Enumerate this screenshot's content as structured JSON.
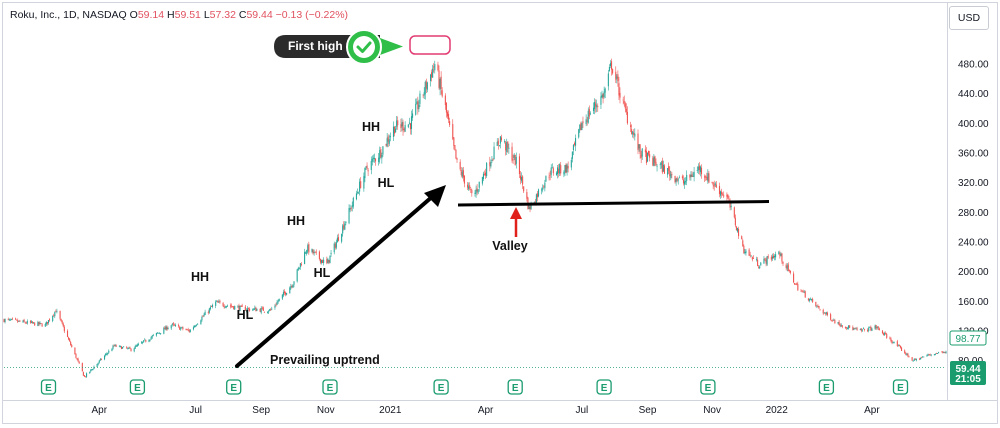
{
  "legend": {
    "symbol": "Roku, Inc., 1D, NASDAQ",
    "open_label": "O",
    "open": "59.14",
    "high_label": "H",
    "high": "59.51",
    "low_label": "L",
    "low": "57.32",
    "close_label": "C",
    "close": "59.44",
    "change": "−0.13 (−0.22%)"
  },
  "currency_button": "USD",
  "colors": {
    "up": "#26a69a",
    "down": "#ef5350",
    "badge_green": "#1a9c6e",
    "check_green": "#2fbf49",
    "highlight_pink": "#e23b71",
    "arrow_red": "#e0211b"
  },
  "icons": {
    "earnings": "E",
    "check": "check-icon"
  },
  "chart_data": {
    "type": "candlestick",
    "title": "",
    "y_axis": {
      "position": "right",
      "ticks": [
        "80.00",
        "120.00",
        "160.00",
        "200.00",
        "240.00",
        "280.00",
        "320.00",
        "360.00",
        "400.00",
        "440.00",
        "480.00"
      ],
      "ylim": [
        60,
        500
      ]
    },
    "x_axis": {
      "ticks": [
        "Apr",
        "Jul",
        "Sep",
        "Nov",
        "2021",
        "Apr",
        "Jul",
        "Sep",
        "Nov",
        "2022",
        "Apr"
      ],
      "range": [
        "2020-01-02",
        "2022-06-10"
      ]
    },
    "price_labels": {
      "current": "98.77",
      "last": "59.44",
      "countdown": "21:05"
    },
    "price_path": [
      [
        "2020-01-02",
        135
      ],
      [
        "2020-02-10",
        128
      ],
      [
        "2020-02-20",
        148
      ],
      [
        "2020-03-18",
        58
      ],
      [
        "2020-04-15",
        100
      ],
      [
        "2020-05-01",
        95
      ],
      [
        "2020-06-08",
        128
      ],
      [
        "2020-06-25",
        120
      ],
      [
        "2020-07-20",
        158
      ],
      [
        "2020-08-15",
        150
      ],
      [
        "2020-09-10",
        148
      ],
      [
        "2020-10-01",
        185
      ],
      [
        "2020-10-14",
        232
      ],
      [
        "2020-11-02",
        210
      ],
      [
        "2020-11-20",
        270
      ],
      [
        "2020-12-10",
        340
      ],
      [
        "2020-12-22",
        360
      ],
      [
        "2021-01-05",
        395
      ],
      [
        "2021-01-20",
        400
      ],
      [
        "2021-02-05",
        455
      ],
      [
        "2021-02-12",
        480
      ],
      [
        "2021-02-22",
        420
      ],
      [
        "2021-03-05",
        345
      ],
      [
        "2021-03-20",
        300
      ],
      [
        "2021-04-02",
        340
      ],
      [
        "2021-04-15",
        380
      ],
      [
        "2021-05-01",
        345
      ],
      [
        "2021-05-12",
        285
      ],
      [
        "2021-06-01",
        335
      ],
      [
        "2021-06-18",
        340
      ],
      [
        "2021-07-01",
        400
      ],
      [
        "2021-07-22",
        440
      ],
      [
        "2021-07-29",
        480
      ],
      [
        "2021-08-10",
        420
      ],
      [
        "2021-08-25",
        360
      ],
      [
        "2021-09-15",
        340
      ],
      [
        "2021-10-05",
        320
      ],
      [
        "2021-10-20",
        340
      ],
      [
        "2021-11-01",
        320
      ],
      [
        "2021-11-15",
        300
      ],
      [
        "2021-12-01",
        230
      ],
      [
        "2021-12-15",
        210
      ],
      [
        "2022-01-03",
        225
      ],
      [
        "2022-01-20",
        180
      ],
      [
        "2022-02-10",
        150
      ],
      [
        "2022-02-28",
        130
      ],
      [
        "2022-03-20",
        120
      ],
      [
        "2022-04-05",
        125
      ],
      [
        "2022-04-25",
        100
      ],
      [
        "2022-05-10",
        80
      ],
      [
        "2022-05-25",
        88
      ],
      [
        "2022-06-10",
        93
      ]
    ],
    "earnings_dates": [
      "2020-02-13",
      "2020-05-07",
      "2020-08-06",
      "2020-11-05",
      "2021-02-18",
      "2021-04-29",
      "2021-07-22",
      "2021-10-28",
      "2022-02-17",
      "2022-04-28"
    ],
    "annotations": {
      "first_high": "First high",
      "valley": "Valley",
      "trend": "Prevailing uptrend",
      "swing_labels": [
        "HH",
        "HL",
        "HH",
        "HL",
        "HH",
        "HL"
      ]
    }
  }
}
